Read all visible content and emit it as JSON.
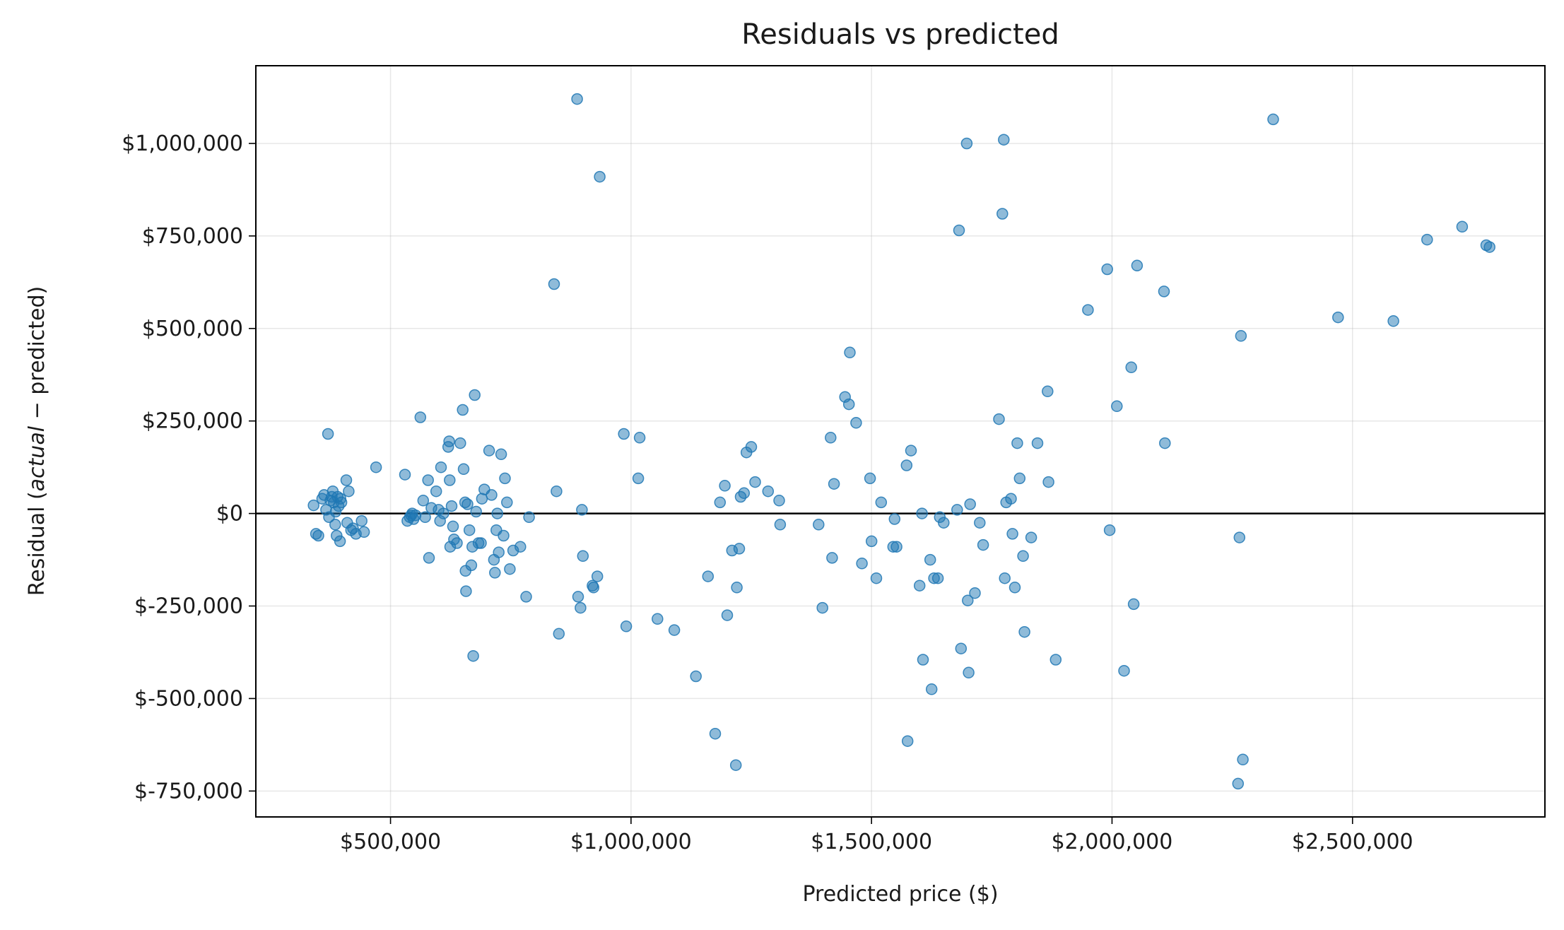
{
  "chart_data": {
    "type": "scatter",
    "title": "Residuals vs predicted",
    "xlabel": "Predicted price ($)",
    "ylabel_parts": [
      "Residual (",
      "actual",
      " −  predicted)"
    ],
    "xlim": [
      220000,
      2900000
    ],
    "ylim": [
      -820000,
      1210000
    ],
    "x_ticks": [
      {
        "value": 500000,
        "label": "$500,000"
      },
      {
        "value": 1000000,
        "label": "$1,000,000"
      },
      {
        "value": 1500000,
        "label": "$1,500,000"
      },
      {
        "value": 2000000,
        "label": "$2,000,000"
      },
      {
        "value": 2500000,
        "label": "$2,500,000"
      }
    ],
    "y_ticks": [
      {
        "value": -750000,
        "label": "$-750,000"
      },
      {
        "value": -500000,
        "label": "$-500,000"
      },
      {
        "value": -250000,
        "label": "$-250,000"
      },
      {
        "value": 0,
        "label": "$0"
      },
      {
        "value": 250000,
        "label": "$250,000"
      },
      {
        "value": 500000,
        "label": "$500,000"
      },
      {
        "value": 750000,
        "label": "$750,000"
      },
      {
        "value": 1000000,
        "label": "$1,000,000"
      }
    ],
    "grid": true,
    "reference_line_y": 0,
    "marker_color": "#1f77b4",
    "marker_alpha": 0.5,
    "points": [
      [
        340000,
        22000
      ],
      [
        345000,
        -55000
      ],
      [
        350000,
        -60000
      ],
      [
        358000,
        40000
      ],
      [
        362000,
        50000
      ],
      [
        366000,
        10000
      ],
      [
        370000,
        215000
      ],
      [
        372000,
        -10000
      ],
      [
        375000,
        35000
      ],
      [
        378000,
        45000
      ],
      [
        380000,
        60000
      ],
      [
        382000,
        30000
      ],
      [
        385000,
        -30000
      ],
      [
        386000,
        5000
      ],
      [
        388000,
        -60000
      ],
      [
        390000,
        45000
      ],
      [
        392000,
        20000
      ],
      [
        395000,
        -75000
      ],
      [
        396000,
        40000
      ],
      [
        398000,
        30000
      ],
      [
        408000,
        90000
      ],
      [
        410000,
        -25000
      ],
      [
        413000,
        60000
      ],
      [
        418000,
        -45000
      ],
      [
        422000,
        -40000
      ],
      [
        428000,
        -55000
      ],
      [
        440000,
        -20000
      ],
      [
        445000,
        -50000
      ],
      [
        470000,
        125000
      ],
      [
        530000,
        105000
      ],
      [
        535000,
        -20000
      ],
      [
        540000,
        -10000
      ],
      [
        543000,
        -5000
      ],
      [
        545000,
        0
      ],
      [
        548000,
        -15000
      ],
      [
        552000,
        -5000
      ],
      [
        562000,
        260000
      ],
      [
        568000,
        35000
      ],
      [
        572000,
        -10000
      ],
      [
        578000,
        90000
      ],
      [
        580000,
        -120000
      ],
      [
        585000,
        15000
      ],
      [
        595000,
        60000
      ],
      [
        600000,
        10000
      ],
      [
        603000,
        -20000
      ],
      [
        605000,
        125000
      ],
      [
        610000,
        0
      ],
      [
        620000,
        180000
      ],
      [
        622000,
        195000
      ],
      [
        623000,
        90000
      ],
      [
        624000,
        -90000
      ],
      [
        627000,
        20000
      ],
      [
        630000,
        -35000
      ],
      [
        632000,
        -70000
      ],
      [
        638000,
        -80000
      ],
      [
        645000,
        190000
      ],
      [
        650000,
        280000
      ],
      [
        652000,
        120000
      ],
      [
        655000,
        30000
      ],
      [
        656000,
        -155000
      ],
      [
        657000,
        -210000
      ],
      [
        660000,
        25000
      ],
      [
        664000,
        -45000
      ],
      [
        668000,
        -140000
      ],
      [
        670000,
        -90000
      ],
      [
        672000,
        -385000
      ],
      [
        675000,
        320000
      ],
      [
        678000,
        5000
      ],
      [
        683000,
        -80000
      ],
      [
        688000,
        -80000
      ],
      [
        690000,
        40000
      ],
      [
        695000,
        65000
      ],
      [
        705000,
        170000
      ],
      [
        710000,
        50000
      ],
      [
        715000,
        -125000
      ],
      [
        717000,
        -160000
      ],
      [
        720000,
        -45000
      ],
      [
        722000,
        0
      ],
      [
        725000,
        -105000
      ],
      [
        730000,
        160000
      ],
      [
        735000,
        -60000
      ],
      [
        738000,
        95000
      ],
      [
        742000,
        30000
      ],
      [
        748000,
        -150000
      ],
      [
        755000,
        -100000
      ],
      [
        770000,
        -90000
      ],
      [
        782000,
        -225000
      ],
      [
        788000,
        -10000
      ],
      [
        840000,
        620000
      ],
      [
        845000,
        60000
      ],
      [
        850000,
        -325000
      ],
      [
        888000,
        1120000
      ],
      [
        890000,
        -225000
      ],
      [
        895000,
        -255000
      ],
      [
        898000,
        10000
      ],
      [
        900000,
        -115000
      ],
      [
        920000,
        -195000
      ],
      [
        922000,
        -200000
      ],
      [
        930000,
        -170000
      ],
      [
        935000,
        910000
      ],
      [
        985000,
        215000
      ],
      [
        990000,
        -305000
      ],
      [
        1015000,
        95000
      ],
      [
        1018000,
        205000
      ],
      [
        1055000,
        -285000
      ],
      [
        1090000,
        -315000
      ],
      [
        1135000,
        -440000
      ],
      [
        1160000,
        -170000
      ],
      [
        1175000,
        -595000
      ],
      [
        1185000,
        30000
      ],
      [
        1195000,
        75000
      ],
      [
        1200000,
        -275000
      ],
      [
        1210000,
        -100000
      ],
      [
        1218000,
        -680000
      ],
      [
        1220000,
        -200000
      ],
      [
        1225000,
        -95000
      ],
      [
        1228000,
        45000
      ],
      [
        1235000,
        55000
      ],
      [
        1240000,
        165000
      ],
      [
        1250000,
        180000
      ],
      [
        1258000,
        85000
      ],
      [
        1285000,
        60000
      ],
      [
        1308000,
        35000
      ],
      [
        1310000,
        -30000
      ],
      [
        1390000,
        -30000
      ],
      [
        1398000,
        -255000
      ],
      [
        1415000,
        205000
      ],
      [
        1418000,
        -120000
      ],
      [
        1422000,
        80000
      ],
      [
        1445000,
        315000
      ],
      [
        1453000,
        295000
      ],
      [
        1455000,
        435000
      ],
      [
        1468000,
        245000
      ],
      [
        1480000,
        -135000
      ],
      [
        1497000,
        95000
      ],
      [
        1500000,
        -75000
      ],
      [
        1510000,
        -175000
      ],
      [
        1520000,
        30000
      ],
      [
        1545000,
        -90000
      ],
      [
        1548000,
        -15000
      ],
      [
        1552000,
        -90000
      ],
      [
        1573000,
        130000
      ],
      [
        1575000,
        -615000
      ],
      [
        1582000,
        170000
      ],
      [
        1600000,
        -195000
      ],
      [
        1605000,
        0
      ],
      [
        1607000,
        -395000
      ],
      [
        1622000,
        -125000
      ],
      [
        1625000,
        -475000
      ],
      [
        1630000,
        -175000
      ],
      [
        1638000,
        -175000
      ],
      [
        1642000,
        -10000
      ],
      [
        1650000,
        -25000
      ],
      [
        1678000,
        10000
      ],
      [
        1682000,
        765000
      ],
      [
        1686000,
        -365000
      ],
      [
        1698000,
        1000000
      ],
      [
        1700000,
        -235000
      ],
      [
        1702000,
        -430000
      ],
      [
        1705000,
        25000
      ],
      [
        1715000,
        -215000
      ],
      [
        1725000,
        -25000
      ],
      [
        1732000,
        -85000
      ],
      [
        1765000,
        255000
      ],
      [
        1772000,
        810000
      ],
      [
        1775000,
        1010000
      ],
      [
        1777000,
        -175000
      ],
      [
        1780000,
        30000
      ],
      [
        1790000,
        40000
      ],
      [
        1793000,
        -55000
      ],
      [
        1798000,
        -200000
      ],
      [
        1803000,
        190000
      ],
      [
        1808000,
        95000
      ],
      [
        1815000,
        -115000
      ],
      [
        1818000,
        -320000
      ],
      [
        1832000,
        -65000
      ],
      [
        1845000,
        190000
      ],
      [
        1866000,
        330000
      ],
      [
        1868000,
        85000
      ],
      [
        1883000,
        -395000
      ],
      [
        1950000,
        550000
      ],
      [
        1990000,
        660000
      ],
      [
        1995000,
        -45000
      ],
      [
        2010000,
        290000
      ],
      [
        2025000,
        -425000
      ],
      [
        2040000,
        395000
      ],
      [
        2045000,
        -245000
      ],
      [
        2052000,
        670000
      ],
      [
        2108000,
        600000
      ],
      [
        2110000,
        190000
      ],
      [
        2262000,
        -730000
      ],
      [
        2265000,
        -65000
      ],
      [
        2268000,
        480000
      ],
      [
        2272000,
        -665000
      ],
      [
        2335000,
        1065000
      ],
      [
        2470000,
        530000
      ],
      [
        2585000,
        520000
      ],
      [
        2655000,
        740000
      ],
      [
        2728000,
        775000
      ],
      [
        2778000,
        725000
      ],
      [
        2785000,
        720000
      ]
    ]
  }
}
